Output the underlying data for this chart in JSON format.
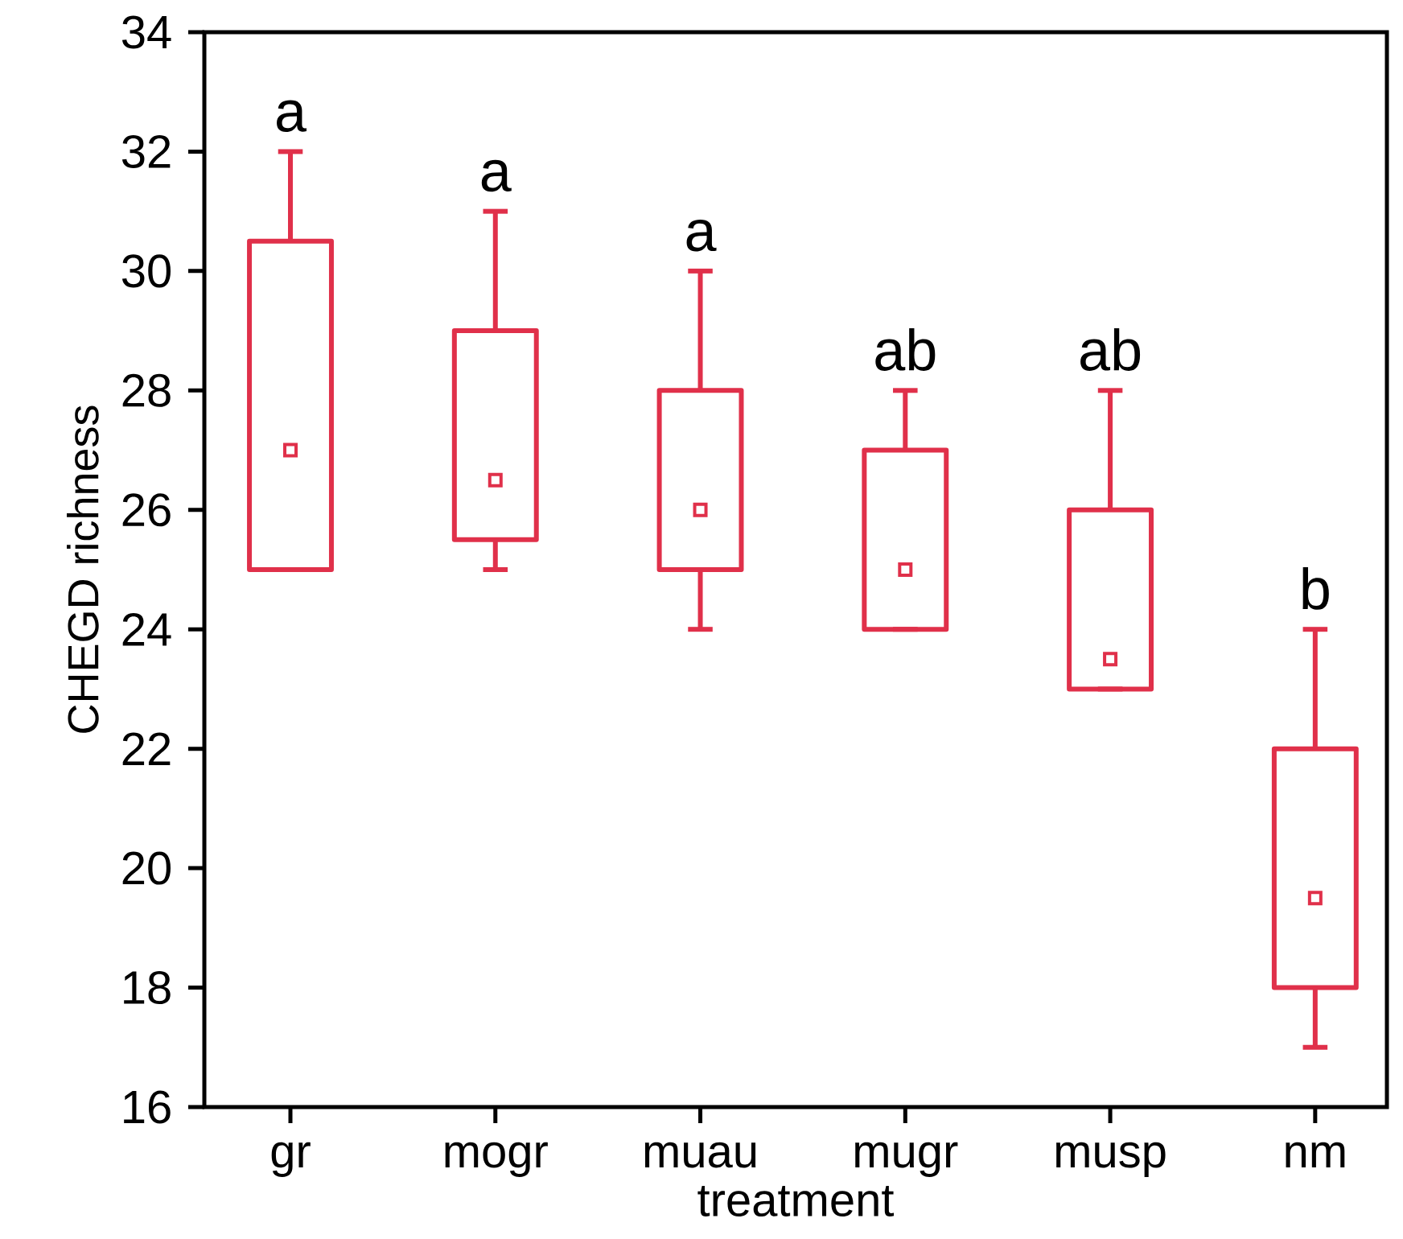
{
  "chart_data": {
    "type": "box",
    "xlabel": "treatment",
    "ylabel": "CHEGD richness",
    "categories": [
      "gr",
      "mogr",
      "muau",
      "mugr",
      "musp",
      "nm"
    ],
    "color": "#e0304a",
    "boxes": [
      {
        "low": 25,
        "q1": 25,
        "median": 27,
        "q3": 30.5,
        "high": 32
      },
      {
        "low": 25,
        "q1": 25.5,
        "median": 26.5,
        "q3": 29,
        "high": 31
      },
      {
        "low": 24,
        "q1": 25,
        "median": 26,
        "q3": 28,
        "high": 30
      },
      {
        "low": 24,
        "q1": 24,
        "median": 25,
        "q3": 27,
        "high": 28
      },
      {
        "low": 23,
        "q1": 23,
        "median": 23.5,
        "q3": 26,
        "high": 28
      },
      {
        "low": 17,
        "q1": 18,
        "median": 19.5,
        "q3": 22,
        "high": 24
      }
    ],
    "ylim": [
      16,
      34
    ],
    "yticks": [
      16,
      18,
      20,
      22,
      24,
      26,
      28,
      30,
      32,
      34
    ],
    "annotations": [
      "a",
      "a",
      "a",
      "ab",
      "ab",
      "b"
    ]
  }
}
